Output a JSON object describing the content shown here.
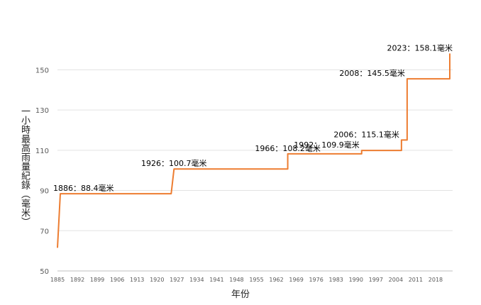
{
  "chart_data": {
    "type": "line",
    "title": "",
    "xlabel": "年份",
    "ylabel": "一小時最高雨量紀錄（毫米）",
    "x_range": [
      1885,
      2024
    ],
    "ylim": [
      50,
      160
    ],
    "y_ticks": [
      50,
      70,
      90,
      110,
      130,
      150
    ],
    "x_ticks": [
      1885,
      1892,
      1899,
      1906,
      1913,
      1920,
      1927,
      1934,
      1941,
      1948,
      1955,
      1962,
      1969,
      1976,
      1983,
      1990,
      1997,
      2004,
      2011,
      2018
    ],
    "grid": "horizontal",
    "line_color": "#ED7D31",
    "series": [
      {
        "points": [
          [
            1885,
            61.5
          ],
          [
            1886,
            88.4
          ],
          [
            1925,
            88.4
          ],
          [
            1926,
            100.7
          ],
          [
            1966,
            100.7
          ],
          [
            1966,
            108.2
          ],
          [
            1992,
            108.2
          ],
          [
            1992,
            109.9
          ],
          [
            2006,
            109.9
          ],
          [
            2006,
            115.1
          ],
          [
            2008,
            115.1
          ],
          [
            2008,
            145.5
          ],
          [
            2023,
            145.5
          ],
          [
            2023,
            158.1
          ]
        ]
      }
    ],
    "annotations": [
      {
        "text": "1886：88.4毫米",
        "x": 1886,
        "y": 88.4
      },
      {
        "text": "1926：100.7毫米",
        "x": 1926,
        "y": 100.7
      },
      {
        "text": "1966：108.2毫米",
        "x": 1966,
        "y": 108.2
      },
      {
        "text": "1992：109.9毫米",
        "x": 1992,
        "y": 109.9
      },
      {
        "text": "2006：115.1毫米",
        "x": 2006,
        "y": 115.1
      },
      {
        "text": "2008：145.5毫米",
        "x": 2008,
        "y": 145.5
      },
      {
        "text": "2023：158.1毫米",
        "x": 2023,
        "y": 158.1
      }
    ]
  }
}
